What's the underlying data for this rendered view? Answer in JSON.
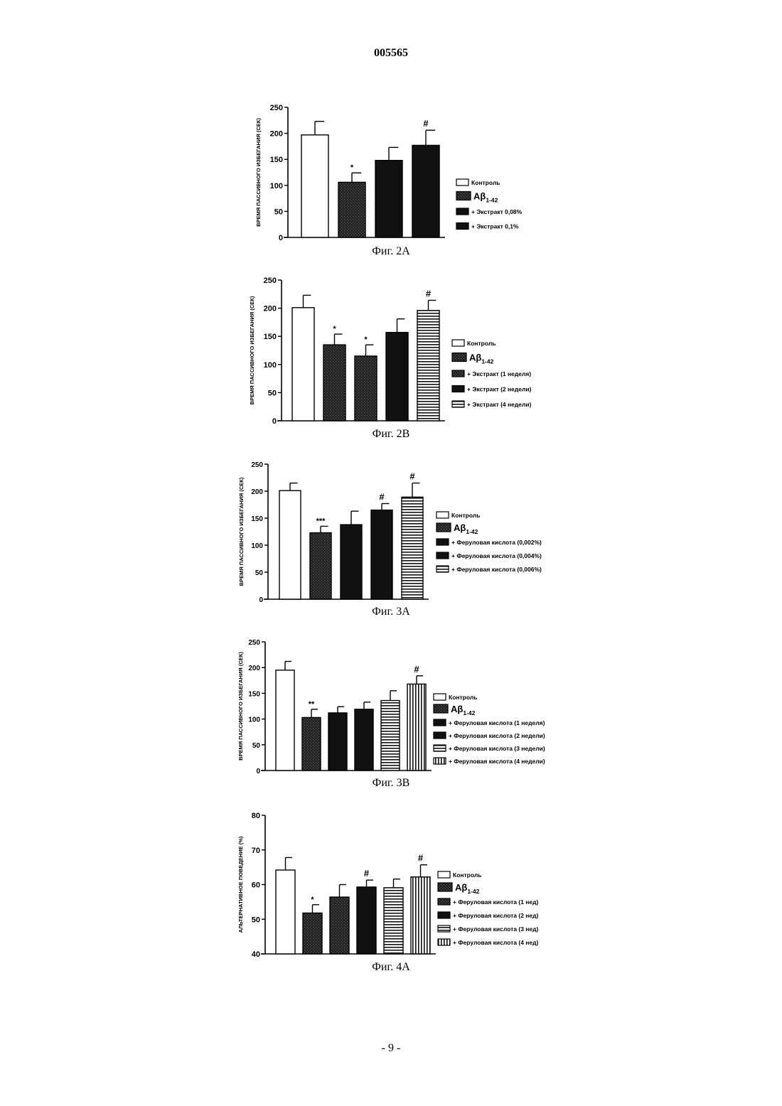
{
  "page": {
    "header_number": "005565",
    "footer_number": "- 9 -"
  },
  "chart_data": [
    {
      "type": "bar",
      "caption": "Фиг. 2A",
      "ylabel": "ВРЕМЯ ПАССИВНОГО ИЗБЕГАНИЯ (СЕК)",
      "ylim": [
        0,
        250
      ],
      "yticks": [
        0,
        50,
        100,
        150,
        200,
        250
      ],
      "categories": [
        "Контроль",
        "Aβ1-42",
        "+ Экстракт 0,08%",
        "+ Экстракт 0,1%"
      ],
      "values": [
        197,
        106,
        148,
        177
      ],
      "errors": [
        26,
        18,
        25,
        29
      ],
      "significance": [
        "",
        "*",
        "",
        "#"
      ],
      "patterns": [
        "white",
        "dark",
        "black",
        "black"
      ],
      "legend": [
        {
          "label": "Контроль",
          "big": false
        },
        {
          "label": "Aβ",
          "sub": "1-42",
          "big": true
        },
        {
          "label": "+ Экстракт 0,08%",
          "big": false
        },
        {
          "label": "+ Экстракт 0,1%",
          "big": false
        }
      ]
    },
    {
      "type": "bar",
      "caption": "Фиг. 2B",
      "ylabel": "ВРЕМЯ ПАССИВНОГО ИЗБЕГАНИЯ (СЕК)",
      "ylim": [
        0,
        250
      ],
      "yticks": [
        0,
        50,
        100,
        150,
        200,
        250
      ],
      "categories": [
        "Контроль",
        "Aβ1-42",
        "+ Экстракт (1 неделя)",
        "+ Экстракт (2 недели)",
        "+ Экстракт (4 недели)"
      ],
      "values": [
        201,
        135,
        115,
        157,
        196
      ],
      "errors": [
        22,
        19,
        20,
        24,
        18
      ],
      "significance": [
        "",
        "*",
        "*",
        "",
        "#"
      ],
      "patterns": [
        "white",
        "dark",
        "dark",
        "black",
        "hstripe"
      ],
      "legend": [
        {
          "label": "Контроль",
          "big": false
        },
        {
          "label": "Aβ",
          "sub": "1-42",
          "big": true
        },
        {
          "label": "+ Экстракт (1 неделя)",
          "big": false
        },
        {
          "label": "+ Экстракт (2 недели)",
          "big": false
        },
        {
          "label": "+ Экстракт (4 недели)",
          "big": false
        }
      ]
    },
    {
      "type": "bar",
      "caption": "Фиг. 3A",
      "ylabel": "ВРЕМЯ ПАССИВНОГО ИЗБЕГАНИЯ (СЕК)",
      "ylim": [
        0,
        250
      ],
      "yticks": [
        0,
        50,
        100,
        150,
        200,
        250
      ],
      "categories": [
        "Контроль",
        "Aβ1-42",
        "+ Феруловая кислота (0,002%)",
        "+ Феруловая кислота (0,004%)",
        "+ Феруловая кислота (0,006%)"
      ],
      "values": [
        201,
        123,
        138,
        165,
        189
      ],
      "errors": [
        14,
        12,
        25,
        12,
        26
      ],
      "significance": [
        "",
        "***",
        "",
        "#",
        "#"
      ],
      "patterns": [
        "white",
        "dark",
        "black",
        "black",
        "hstripe"
      ],
      "legend": [
        {
          "label": "Контроль",
          "big": false
        },
        {
          "label": "Aβ",
          "sub": "1-42",
          "big": true
        },
        {
          "label": "+ Феруловая кислота (0,002%)",
          "big": false
        },
        {
          "label": "+ Феруловая кислота (0,004%)",
          "big": false
        },
        {
          "label": "+ Феруловая кислота (0,006%)",
          "big": false
        }
      ]
    },
    {
      "type": "bar",
      "caption": "Фиг. 3B",
      "ylabel": "ВРЕМЯ ПАССИВНОГО ИЗБЕГАНИЯ (СЕК)",
      "ylim": [
        0,
        250
      ],
      "yticks": [
        0,
        50,
        100,
        150,
        200,
        250
      ],
      "categories": [
        "Контроль",
        "Aβ1-42",
        "+ Феруловая кислота (1 неделя)",
        "+ Феруловая кислота (2 недели)",
        "+ Феруловая кислота (3 недели)",
        "+ Феруловая кислота (4 недели)"
      ],
      "values": [
        195,
        103,
        112,
        119,
        136,
        168
      ],
      "errors": [
        17,
        16,
        12,
        14,
        19,
        16
      ],
      "significance": [
        "",
        "**",
        "",
        "",
        "",
        "#"
      ],
      "patterns": [
        "white",
        "dark",
        "black",
        "black",
        "hstripe",
        "vstripe"
      ],
      "legend": [
        {
          "label": "Контроль",
          "big": false
        },
        {
          "label": "Aβ",
          "sub": "1-42",
          "big": true
        },
        {
          "label": "+ Феруловая кислота (1 неделя)",
          "big": false
        },
        {
          "label": "+ Феруловая кислота (2 недели)",
          "big": false
        },
        {
          "label": "+ Феруловая кислота (3 недели)",
          "big": false
        },
        {
          "label": "+ Феруловая кислота (4 недели)",
          "big": false
        }
      ]
    },
    {
      "type": "bar",
      "caption": "Фиг. 4A",
      "ylabel": "АЛЬТЕРНАТИВНОЕ ПОВЕДЕНИЕ (%)",
      "ylim": [
        40,
        80
      ],
      "yticks": [
        40,
        50,
        60,
        70,
        80
      ],
      "categories": [
        "Контроль",
        "Aβ1-42",
        "+ Феруловая кислота (1 нед)",
        "+ Феруловая кислота (2 нед)",
        "+ Феруловая кислота (3 нед)",
        "+ Феруловая кислота (4 нед)"
      ],
      "values": [
        64.2,
        51.8,
        56.4,
        59.3,
        59.1,
        62.2
      ],
      "errors": [
        3.6,
        2.4,
        3.6,
        2.0,
        2.5,
        3.5
      ],
      "significance": [
        "",
        "*",
        "",
        "#",
        "",
        "#"
      ],
      "patterns": [
        "white",
        "dark",
        "dark",
        "black",
        "hstripe",
        "vstripe"
      ],
      "legend": [
        {
          "label": "Контроль",
          "big": false
        },
        {
          "label": "Aβ",
          "sub": "1-42",
          "big": true
        },
        {
          "label": "+ Феруловая кислота (1 нед)",
          "big": false
        },
        {
          "label": "+ Феруловая кислота (2 нед)",
          "big": false
        },
        {
          "label": "+ Феруловая кислота (3 нед)",
          "big": false
        },
        {
          "label": "+ Феруловая кислота (4 нед)",
          "big": false
        }
      ]
    }
  ]
}
